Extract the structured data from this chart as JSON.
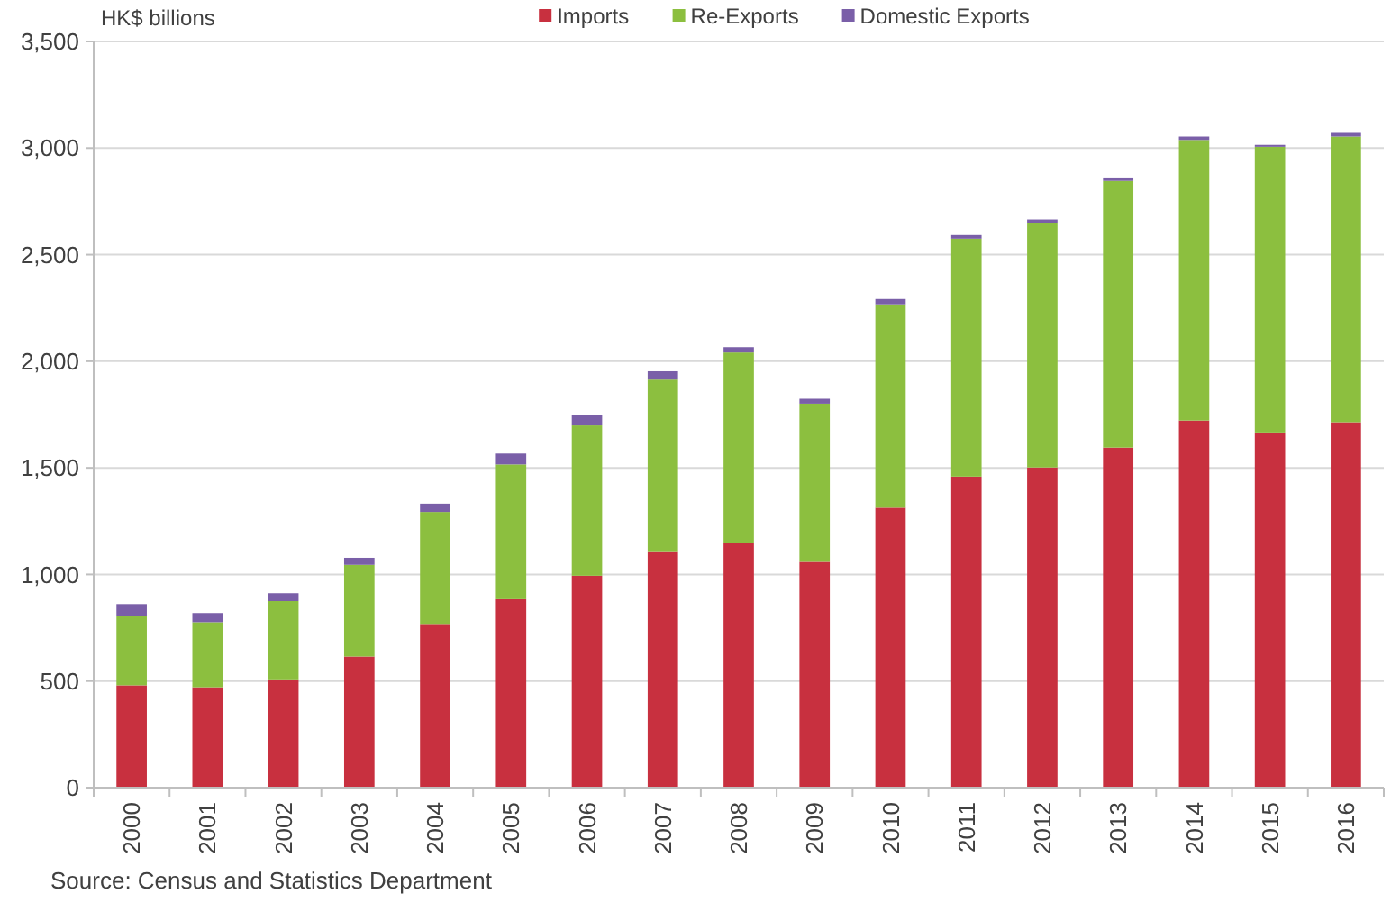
{
  "chart_data": {
    "type": "bar",
    "stacked": true,
    "ylabel": "HK$ billions",
    "categories": [
      "2000",
      "2001",
      "2002",
      "2003",
      "2004",
      "2005",
      "2006",
      "2007",
      "2008",
      "2009",
      "2010",
      "2011",
      "2012",
      "2013",
      "2014",
      "2015",
      "2016"
    ],
    "series": [
      {
        "name": "Imports",
        "color": "#c8303f",
        "values": [
          480,
          471,
          508,
          615,
          768,
          884,
          994,
          1109,
          1149,
          1059,
          1313,
          1459,
          1502,
          1595,
          1722,
          1666,
          1714
        ]
      },
      {
        "name": "Re-Exports",
        "color": "#8cbf3f",
        "values": [
          325,
          305,
          367,
          430,
          525,
          632,
          705,
          805,
          892,
          742,
          954,
          1116,
          1146,
          1251,
          1316,
          1340,
          1340
        ]
      },
      {
        "name": "Domestic Exports",
        "color": "#7a5fa8",
        "values": [
          56,
          43,
          37,
          33,
          39,
          51,
          51,
          39,
          25,
          23,
          25,
          17,
          17,
          16,
          16,
          9,
          17
        ]
      }
    ],
    "ylim": [
      0,
      3500
    ],
    "yticks": [
      {
        "value": 0,
        "label": "0"
      },
      {
        "value": 500,
        "label": "500"
      },
      {
        "value": 1000,
        "label": "1,000"
      },
      {
        "value": 1500,
        "label": "1,500"
      },
      {
        "value": 2000,
        "label": "2,000"
      },
      {
        "value": 2500,
        "label": "2,500"
      },
      {
        "value": 3000,
        "label": "3,000"
      },
      {
        "value": 3500,
        "label": "3,500"
      }
    ],
    "grid": "y",
    "legend": "top",
    "annotations": [
      "Source: Census and Statistics Department"
    ]
  }
}
